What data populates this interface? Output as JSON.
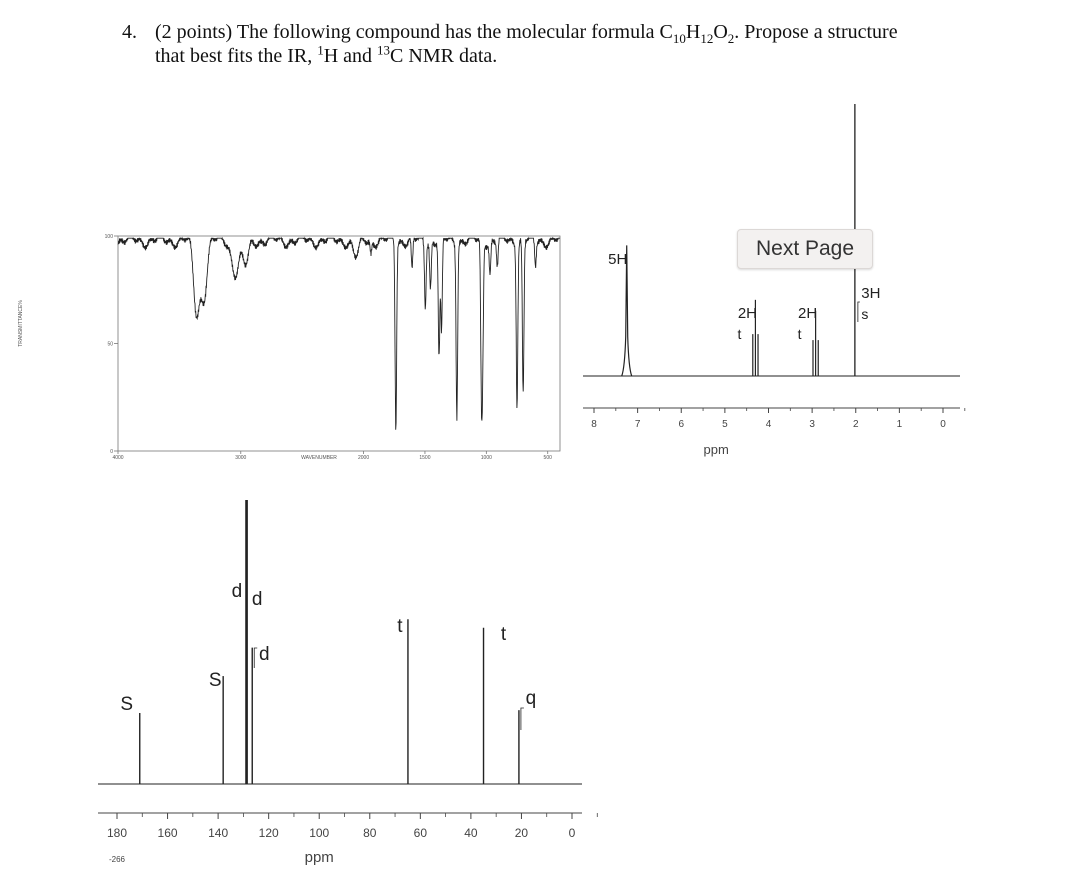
{
  "question": {
    "number": "4.",
    "line1_a": "(2 points) The following compound has the molecular formula C",
    "f_c": "10",
    "f_h_label": "H",
    "f_h": "12",
    "f_o_label": "O",
    "f_o": "2",
    "line1_b": ". Propose a structure",
    "line2_a": "that best fits the IR, ",
    "sup1": "1",
    "line2_b": "H and ",
    "sup13": "13",
    "line2_c": "C NMR data."
  },
  "next_page_button": "Next Page",
  "chart_data": [
    {
      "type": "line",
      "name": "IR spectrum",
      "xlabel": "WAVENUMBER",
      "ylabel": "TRANSMITTANCE%",
      "xlim": [
        4000,
        400
      ],
      "ylim": [
        0,
        100
      ],
      "y_ticks": [
        "100",
        "50",
        "0"
      ],
      "x_ticks": [
        "4000",
        "3000",
        "2000",
        "1500",
        "1000",
        "500"
      ],
      "reversed_x": true,
      "bands": [
        {
          "x": 3360,
          "depth": 33
        },
        {
          "x": 3300,
          "depth": 25
        },
        {
          "x": 3060,
          "depth": 8
        },
        {
          "x": 3030,
          "depth": 10
        },
        {
          "x": 2960,
          "depth": 12
        },
        {
          "x": 2060,
          "depth": 8
        },
        {
          "x": 1940,
          "depth": 6
        },
        {
          "x": 1737,
          "depth": 87
        },
        {
          "x": 1605,
          "depth": 15
        },
        {
          "x": 1497,
          "depth": 30
        },
        {
          "x": 1455,
          "depth": 22
        },
        {
          "x": 1385,
          "depth": 55
        },
        {
          "x": 1365,
          "depth": 45
        },
        {
          "x": 1240,
          "depth": 80
        },
        {
          "x": 1040,
          "depth": 65
        },
        {
          "x": 1030,
          "depth": 50
        },
        {
          "x": 970,
          "depth": 15
        },
        {
          "x": 910,
          "depth": 12
        },
        {
          "x": 750,
          "depth": 75
        },
        {
          "x": 700,
          "depth": 72
        },
        {
          "x": 600,
          "depth": 12
        }
      ]
    },
    {
      "type": "line",
      "name": "1H NMR spectrum",
      "xlabel": "ppm",
      "xlim": [
        8,
        0
      ],
      "x_ticks": [
        "8",
        "7",
        "6",
        "5",
        "4",
        "3",
        "2",
        "1",
        "0"
      ],
      "peaks": [
        {
          "ppm": 7.25,
          "height": 0.48,
          "label": "5H",
          "mult": ""
        },
        {
          "ppm": 4.3,
          "height": 0.28,
          "label": "2H",
          "mult": "t"
        },
        {
          "ppm": 2.92,
          "height": 0.24,
          "label": "2H",
          "mult": "t"
        },
        {
          "ppm": 2.02,
          "height": 1.0,
          "label": "3H",
          "mult": "s"
        }
      ]
    },
    {
      "type": "line",
      "name": "13C NMR spectrum",
      "xlabel": "ppm",
      "xlim": [
        180,
        0
      ],
      "x_ticks": [
        "180",
        "160",
        "140",
        "120",
        "100",
        "80",
        "60",
        "40",
        "20",
        "0"
      ],
      "extra_label": "-266",
      "peaks": [
        {
          "ppm": 171.0,
          "height": 0.25,
          "label": "S"
        },
        {
          "ppm": 138.0,
          "height": 0.38,
          "label": "S"
        },
        {
          "ppm": 129.0,
          "height": 1.0,
          "label": "d"
        },
        {
          "ppm": 128.5,
          "height": 1.0,
          "label": "d"
        },
        {
          "ppm": 126.5,
          "height": 0.48,
          "label": "d"
        },
        {
          "ppm": 64.9,
          "height": 0.58,
          "label": "t"
        },
        {
          "ppm": 35.0,
          "height": 0.55,
          "label": "t"
        },
        {
          "ppm": 21.0,
          "height": 0.26,
          "label": "q"
        }
      ]
    }
  ]
}
